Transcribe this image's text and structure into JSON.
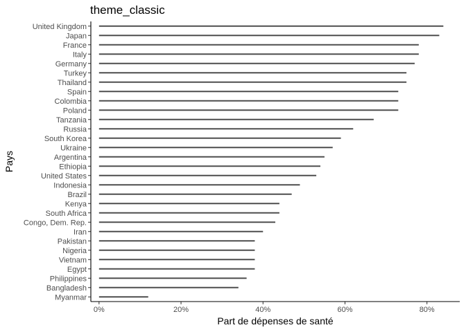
{
  "chart_data": {
    "type": "bar",
    "orientation": "horizontal",
    "title": "theme_classic",
    "xlabel": "Part de dépenses de santé",
    "ylabel": "Pays",
    "categories": [
      "United Kingdom",
      "Japan",
      "France",
      "Italy",
      "Germany",
      "Turkey",
      "Thailand",
      "Spain",
      "Colombia",
      "Poland",
      "Tanzania",
      "Russia",
      "South Korea",
      "Ukraine",
      "Argentina",
      "Ethiopia",
      "United States",
      "Indonesia",
      "Brazil",
      "Kenya",
      "South Africa",
      "Congo, Dem. Rep.",
      "Iran",
      "Pakistan",
      "Nigeria",
      "Vietnam",
      "Egypt",
      "Philippines",
      "Bangladesh",
      "Myanmar"
    ],
    "values": [
      0.84,
      0.83,
      0.78,
      0.78,
      0.77,
      0.75,
      0.75,
      0.73,
      0.73,
      0.73,
      0.67,
      0.62,
      0.59,
      0.57,
      0.55,
      0.54,
      0.53,
      0.49,
      0.47,
      0.44,
      0.44,
      0.43,
      0.4,
      0.38,
      0.38,
      0.38,
      0.38,
      0.36,
      0.34,
      0.12
    ],
    "xlim": [
      -0.02,
      0.88
    ],
    "x_ticks": [
      0,
      0.2,
      0.4,
      0.6,
      0.8
    ],
    "x_tick_labels": [
      "0%",
      "20%",
      "40%",
      "60%",
      "80%"
    ],
    "grid": false,
    "bar_color": "#4d4d4d"
  }
}
